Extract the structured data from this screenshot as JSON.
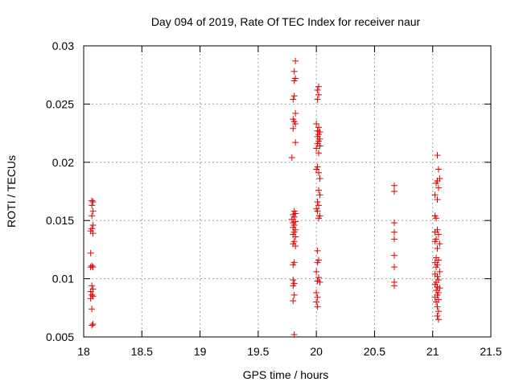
{
  "chart_data": {
    "type": "scatter",
    "title": "Day 094 of 2019, Rate Of TEC Index for receiver naur",
    "xlabel": "GPS time / hours",
    "ylabel": "ROTI / TECUs",
    "xlim": [
      18,
      21.5
    ],
    "ylim": [
      0.005,
      0.03
    ],
    "x_ticks": [
      18,
      18.5,
      19,
      19.5,
      20,
      20.5,
      21,
      21.5
    ],
    "x_tick_labels": [
      "18",
      "18.5",
      "19",
      "19.5",
      "20",
      "20.5",
      "21",
      "21.5"
    ],
    "y_ticks": [
      0.005,
      0.01,
      0.015,
      0.02,
      0.025,
      0.03
    ],
    "y_tick_labels": [
      "0.005",
      "0.01",
      "0.015",
      "0.02",
      "0.025",
      "0.03"
    ],
    "grid": true,
    "marker": "+",
    "marker_color": "#e00000",
    "points": [
      [
        18.07,
        0.0167
      ],
      [
        18.08,
        0.0166
      ],
      [
        18.07,
        0.0163
      ],
      [
        18.08,
        0.0158
      ],
      [
        18.07,
        0.0154
      ],
      [
        18.08,
        0.0146
      ],
      [
        18.07,
        0.0143
      ],
      [
        18.06,
        0.0141
      ],
      [
        18.08,
        0.0139
      ],
      [
        18.06,
        0.0122
      ],
      [
        18.07,
        0.0111
      ],
      [
        18.08,
        0.011
      ],
      [
        18.06,
        0.011
      ],
      [
        18.07,
        0.0094
      ],
      [
        18.08,
        0.0091
      ],
      [
        18.06,
        0.0089
      ],
      [
        18.07,
        0.0086
      ],
      [
        18.08,
        0.0085
      ],
      [
        18.06,
        0.0083
      ],
      [
        18.07,
        0.0074
      ],
      [
        18.07,
        0.006
      ],
      [
        18.08,
        0.0061
      ],
      [
        19.82,
        0.0287
      ],
      [
        19.81,
        0.0278
      ],
      [
        19.82,
        0.0272
      ],
      [
        19.81,
        0.027
      ],
      [
        19.81,
        0.0257
      ],
      [
        19.8,
        0.0254
      ],
      [
        19.82,
        0.0242
      ],
      [
        19.8,
        0.0237
      ],
      [
        19.81,
        0.0235
      ],
      [
        19.82,
        0.0233
      ],
      [
        19.8,
        0.0229
      ],
      [
        19.82,
        0.0217
      ],
      [
        19.79,
        0.0204
      ],
      [
        19.81,
        0.0158
      ],
      [
        19.82,
        0.0156
      ],
      [
        19.8,
        0.0155
      ],
      [
        19.81,
        0.0153
      ],
      [
        19.79,
        0.0151
      ],
      [
        19.82,
        0.0149
      ],
      [
        19.8,
        0.0148
      ],
      [
        19.81,
        0.0146
      ],
      [
        19.8,
        0.0144
      ],
      [
        19.82,
        0.0142
      ],
      [
        19.81,
        0.014
      ],
      [
        19.8,
        0.0138
      ],
      [
        19.82,
        0.0136
      ],
      [
        19.81,
        0.0132
      ],
      [
        19.8,
        0.013
      ],
      [
        19.82,
        0.0128
      ],
      [
        19.81,
        0.0114
      ],
      [
        19.8,
        0.0112
      ],
      [
        19.8,
        0.0099
      ],
      [
        19.81,
        0.0096
      ],
      [
        19.8,
        0.0094
      ],
      [
        19.81,
        0.0086
      ],
      [
        19.8,
        0.0081
      ],
      [
        19.81,
        0.0052
      ],
      [
        20.02,
        0.0265
      ],
      [
        20.01,
        0.0262
      ],
      [
        20.02,
        0.0258
      ],
      [
        20.01,
        0.0254
      ],
      [
        20.0,
        0.0233
      ],
      [
        20.02,
        0.023
      ],
      [
        20.01,
        0.0227
      ],
      [
        20.03,
        0.0226
      ],
      [
        20.02,
        0.0224
      ],
      [
        20.01,
        0.0222
      ],
      [
        20.03,
        0.022
      ],
      [
        20.02,
        0.0218
      ],
      [
        20.01,
        0.0216
      ],
      [
        20.03,
        0.0214
      ],
      [
        20.0,
        0.0212
      ],
      [
        20.02,
        0.0208
      ],
      [
        20.01,
        0.0196
      ],
      [
        20.0,
        0.0194
      ],
      [
        20.02,
        0.0191
      ],
      [
        20.03,
        0.0186
      ],
      [
        20.02,
        0.0176
      ],
      [
        20.03,
        0.0172
      ],
      [
        20.01,
        0.0166
      ],
      [
        20.02,
        0.0163
      ],
      [
        20.0,
        0.016
      ],
      [
        20.01,
        0.0158
      ],
      [
        20.03,
        0.0154
      ],
      [
        20.02,
        0.0152
      ],
      [
        20.01,
        0.0124
      ],
      [
        20.02,
        0.0116
      ],
      [
        20.01,
        0.0114
      ],
      [
        20.0,
        0.0106
      ],
      [
        20.02,
        0.0101
      ],
      [
        20.01,
        0.0098
      ],
      [
        20.03,
        0.0097
      ],
      [
        20.0,
        0.0088
      ],
      [
        20.01,
        0.0084
      ],
      [
        20.0,
        0.008
      ],
      [
        20.01,
        0.0076
      ],
      [
        20.67,
        0.018
      ],
      [
        20.67,
        0.0175
      ],
      [
        20.67,
        0.0148
      ],
      [
        20.67,
        0.014
      ],
      [
        20.67,
        0.0134
      ],
      [
        20.67,
        0.012
      ],
      [
        20.67,
        0.011
      ],
      [
        20.67,
        0.0097
      ],
      [
        20.67,
        0.0094
      ],
      [
        21.04,
        0.0206
      ],
      [
        21.05,
        0.0194
      ],
      [
        21.06,
        0.0186
      ],
      [
        21.04,
        0.0184
      ],
      [
        21.03,
        0.0182
      ],
      [
        21.05,
        0.0178
      ],
      [
        21.02,
        0.0172
      ],
      [
        21.04,
        0.0168
      ],
      [
        21.02,
        0.0154
      ],
      [
        21.03,
        0.0152
      ],
      [
        21.04,
        0.0142
      ],
      [
        21.02,
        0.014
      ],
      [
        21.05,
        0.0138
      ],
      [
        21.03,
        0.0134
      ],
      [
        21.02,
        0.0132
      ],
      [
        21.06,
        0.013
      ],
      [
        21.04,
        0.0126
      ],
      [
        21.03,
        0.0118
      ],
      [
        21.05,
        0.0116
      ],
      [
        21.02,
        0.0114
      ],
      [
        21.04,
        0.0112
      ],
      [
        21.03,
        0.011
      ],
      [
        21.06,
        0.0106
      ],
      [
        21.02,
        0.0104
      ],
      [
        21.04,
        0.0102
      ],
      [
        21.05,
        0.0099
      ],
      [
        21.03,
        0.0097
      ],
      [
        21.02,
        0.0095
      ],
      [
        21.04,
        0.0093
      ],
      [
        21.06,
        0.0092
      ],
      [
        21.03,
        0.009
      ],
      [
        21.05,
        0.0088
      ],
      [
        21.04,
        0.0086
      ],
      [
        21.02,
        0.0084
      ],
      [
        21.05,
        0.0082
      ],
      [
        21.03,
        0.008
      ],
      [
        21.04,
        0.0076
      ],
      [
        21.05,
        0.0072
      ],
      [
        21.04,
        0.0068
      ],
      [
        21.05,
        0.0065
      ]
    ]
  }
}
